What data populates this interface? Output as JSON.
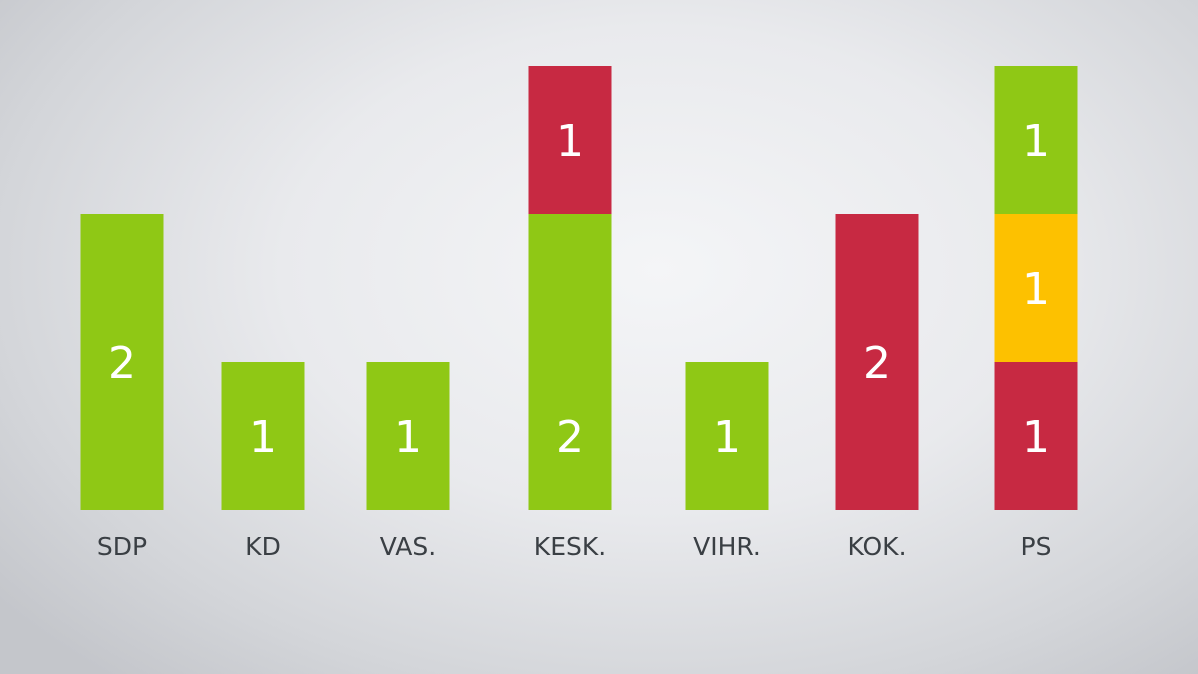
{
  "chart_data": {
    "type": "bar",
    "stacked": true,
    "grid": false,
    "legend": "none",
    "ylim": [
      0,
      3
    ],
    "colors": {
      "green": "#8fc815",
      "red": "#c72942",
      "yellow": "#fdc100"
    },
    "categories": [
      "SDP",
      "KD",
      "VAS.",
      "KESK.",
      "VIHR.",
      "KOK.",
      "PS"
    ],
    "bars": [
      {
        "category": "SDP",
        "segments": [
          {
            "value": 2,
            "color": "green"
          }
        ]
      },
      {
        "category": "KD",
        "segments": [
          {
            "value": 1,
            "color": "green"
          }
        ]
      },
      {
        "category": "VAS.",
        "segments": [
          {
            "value": 1,
            "color": "green"
          }
        ]
      },
      {
        "category": "KESK.",
        "segments": [
          {
            "value": 2,
            "color": "green"
          },
          {
            "value": 1,
            "color": "red"
          }
        ]
      },
      {
        "category": "VIHR.",
        "segments": [
          {
            "value": 1,
            "color": "green"
          }
        ]
      },
      {
        "category": "KOK.",
        "segments": [
          {
            "value": 2,
            "color": "red"
          }
        ]
      },
      {
        "category": "PS",
        "segments": [
          {
            "value": 1,
            "color": "red"
          },
          {
            "value": 1,
            "color": "yellow"
          },
          {
            "value": 1,
            "color": "green"
          }
        ]
      }
    ]
  }
}
